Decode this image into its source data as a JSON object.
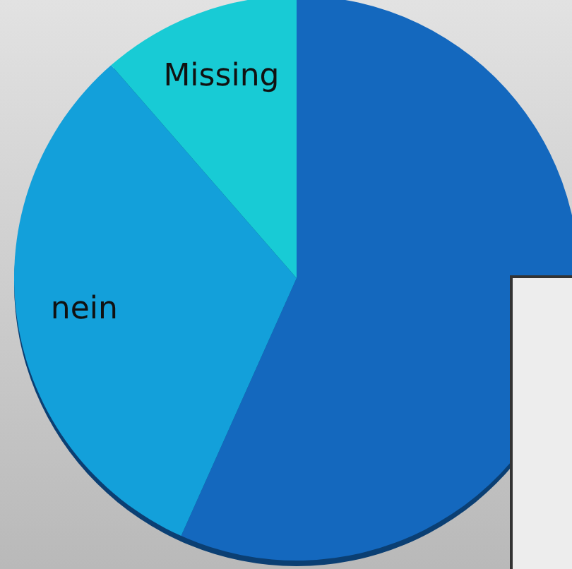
{
  "chart_data": {
    "type": "pie",
    "categories": [
      null,
      "nein",
      "Missing"
    ],
    "values": [
      56.7,
      31.9,
      11.4
    ],
    "colors": [
      "#1468be",
      "#13a0da",
      "#18cbd5"
    ]
  }
}
